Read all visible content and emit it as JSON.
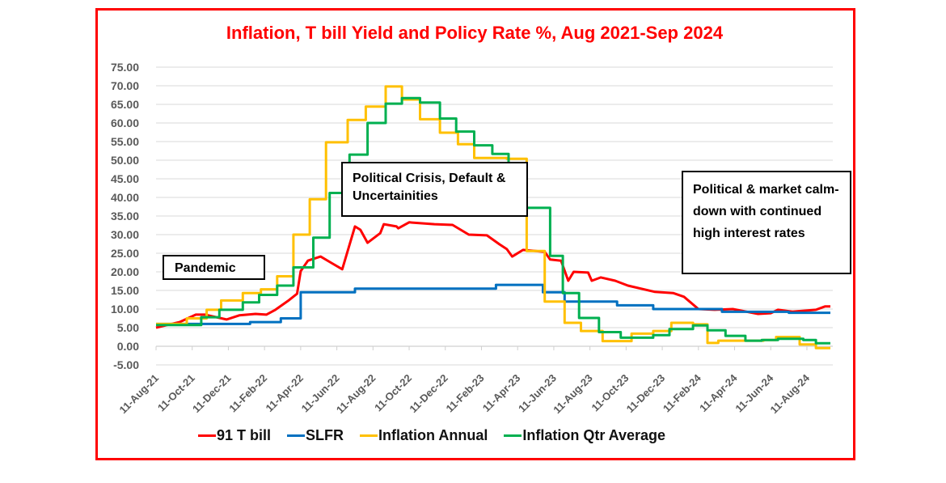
{
  "chart_data": {
    "type": "line",
    "title": "Inflation, T bill Yield and Policy Rate %, Aug 2021-Sep 2024",
    "xlabel": "",
    "ylabel": "",
    "x_unit": "months since 11-Aug-21",
    "xlim": [
      0,
      37.5
    ],
    "ylim": [
      -5,
      75
    ],
    "y_ticks": [
      "-5.00",
      "0.00",
      "5.00",
      "10.00",
      "15.00",
      "20.00",
      "25.00",
      "30.00",
      "35.00",
      "40.00",
      "45.00",
      "50.00",
      "55.00",
      "60.00",
      "65.00",
      "70.00",
      "75.00"
    ],
    "x_ticks": [
      "11-Aug-21",
      "11-Oct-21",
      "11-Dec-21",
      "11-Feb-22",
      "11-Apr-22",
      "11-Jun-22",
      "11-Aug-22",
      "11-Oct-22",
      "11-Dec-22",
      "11-Feb-23",
      "11-Apr-23",
      "11-Jun-23",
      "11-Aug-23",
      "11-Oct-23",
      "11-Dec-23",
      "11-Feb-24",
      "11-Apr-24",
      "11-Jun-24",
      "11-Aug-24"
    ],
    "grid": true,
    "legend_placement": "bottom",
    "series": [
      {
        "name": "91 T bill",
        "color": "#ff0000",
        "mode": "line",
        "points": [
          [
            0,
            5
          ],
          [
            1.3,
            6.5
          ],
          [
            2.2,
            8.5
          ],
          [
            2.7,
            8.5
          ],
          [
            3.9,
            7.2
          ],
          [
            4.6,
            8.3
          ],
          [
            5.5,
            8.7
          ],
          [
            6.1,
            8.5
          ],
          [
            6.6,
            9.8
          ],
          [
            7.3,
            12.2
          ],
          [
            7.8,
            14.1
          ],
          [
            8.0,
            20.2
          ],
          [
            8.4,
            23
          ],
          [
            9.1,
            24.1
          ],
          [
            9.7,
            22.4
          ],
          [
            10.3,
            20.7
          ],
          [
            11,
            32.2
          ],
          [
            11.3,
            31.3
          ],
          [
            11.7,
            27.8
          ],
          [
            12.4,
            30.4
          ],
          [
            12.6,
            32.8
          ],
          [
            13.3,
            32.2
          ],
          [
            13.4,
            31.7
          ],
          [
            14,
            33.3
          ],
          [
            15.4,
            32.8
          ],
          [
            16.4,
            32.6
          ],
          [
            17.3,
            30
          ],
          [
            18.3,
            29.8
          ],
          [
            19,
            27.4
          ],
          [
            19.4,
            26.1
          ],
          [
            19.7,
            24.1
          ],
          [
            20.3,
            25.9
          ],
          [
            21.5,
            25.4
          ],
          [
            21.8,
            23.3
          ],
          [
            22.4,
            23
          ],
          [
            22.8,
            17.6
          ],
          [
            23.1,
            20
          ],
          [
            23.9,
            19.8
          ],
          [
            24.1,
            17.6
          ],
          [
            24.6,
            18.5
          ],
          [
            25.4,
            17.6
          ],
          [
            26.1,
            16.3
          ],
          [
            27.6,
            14.6
          ],
          [
            28.6,
            14.3
          ],
          [
            29.2,
            13.3
          ],
          [
            30,
            10
          ],
          [
            30.9,
            9.8
          ],
          [
            31.9,
            10
          ],
          [
            33.3,
            8.7
          ],
          [
            34,
            8.9
          ],
          [
            34.4,
            9.8
          ],
          [
            35.2,
            9.3
          ],
          [
            36.5,
            9.8
          ],
          [
            37,
            10.7
          ],
          [
            37.3,
            10.7
          ]
        ]
      },
      {
        "name": "SLFR",
        "color": "#0070c0",
        "mode": "step",
        "end": 37.3,
        "points": [
          [
            0,
            6
          ],
          [
            5.2,
            6.5
          ],
          [
            6.9,
            7.5
          ],
          [
            8.0,
            14.5
          ],
          [
            11,
            15.5
          ],
          [
            18.8,
            16.5
          ],
          [
            21.4,
            14.5
          ],
          [
            22.6,
            12
          ],
          [
            25.5,
            11
          ],
          [
            27.5,
            10
          ],
          [
            31.3,
            9.25
          ],
          [
            35,
            9
          ]
        ]
      },
      {
        "name": "Inflation Annual",
        "color": "#ffc000",
        "mode": "step",
        "end": 37.3,
        "points": [
          [
            0,
            6
          ],
          [
            1.7,
            7.5
          ],
          [
            2.8,
            9.8
          ],
          [
            3.6,
            12.3
          ],
          [
            4.8,
            14.3
          ],
          [
            5.8,
            15.3
          ],
          [
            6.7,
            18.8
          ],
          [
            7.6,
            30
          ],
          [
            8.5,
            39.5
          ],
          [
            9.4,
            54.8
          ],
          [
            10.6,
            60.8
          ],
          [
            11.6,
            64.4
          ],
          [
            12.7,
            69.8
          ],
          [
            13.6,
            66.3
          ],
          [
            14.6,
            61
          ],
          [
            15.7,
            57.4
          ],
          [
            16.7,
            54.3
          ],
          [
            17.6,
            50.6
          ],
          [
            19.4,
            50.4
          ],
          [
            20.5,
            25.6
          ],
          [
            21.5,
            12
          ],
          [
            22.6,
            6.3
          ],
          [
            23.5,
            4.1
          ],
          [
            24.7,
            1.4
          ],
          [
            26.3,
            3.4
          ],
          [
            27.5,
            4.1
          ],
          [
            28.5,
            6.3
          ],
          [
            29.7,
            5.9
          ],
          [
            30.5,
            0.9
          ],
          [
            31.1,
            1.5
          ],
          [
            33.6,
            1.7
          ],
          [
            34.3,
            2.5
          ],
          [
            35.6,
            0.5
          ],
          [
            36.5,
            -0.5
          ]
        ]
      },
      {
        "name": "Inflation Qtr Average",
        "color": "#00b050",
        "mode": "step",
        "end": 37.3,
        "points": [
          [
            0,
            5.7
          ],
          [
            2.5,
            7.8
          ],
          [
            3.5,
            9.8
          ],
          [
            4.8,
            11.8
          ],
          [
            5.7,
            13.8
          ],
          [
            6.7,
            16.3
          ],
          [
            7.6,
            21.2
          ],
          [
            8.7,
            29.2
          ],
          [
            9.6,
            41.2
          ],
          [
            10.7,
            51.5
          ],
          [
            11.7,
            60
          ],
          [
            12.7,
            65.2
          ],
          [
            13.6,
            66.7
          ],
          [
            14.6,
            65.5
          ],
          [
            15.7,
            61.2
          ],
          [
            16.6,
            57.7
          ],
          [
            17.6,
            54
          ],
          [
            18.6,
            51.7
          ],
          [
            19.5,
            37.2
          ],
          [
            21.8,
            24.3
          ],
          [
            22.5,
            14.3
          ],
          [
            23.4,
            7.6
          ],
          [
            24.5,
            3.8
          ],
          [
            25.7,
            2.3
          ],
          [
            27.5,
            3.0
          ],
          [
            28.4,
            4.6
          ],
          [
            29.7,
            5.6
          ],
          [
            30.5,
            4.3
          ],
          [
            31.5,
            2.8
          ],
          [
            32.6,
            1.5
          ],
          [
            33.5,
            1.7
          ],
          [
            34.4,
            2.0
          ],
          [
            35.8,
            1.7
          ],
          [
            36.5,
            0.8
          ]
        ]
      }
    ],
    "annotations": [
      {
        "id": "pandemic",
        "text": "Pandemic"
      },
      {
        "id": "crisis",
        "text": "Political Crisis, Default & Uncertainities"
      },
      {
        "id": "calm",
        "text": "Political & market calm-down with continued high interest rates"
      }
    ]
  }
}
